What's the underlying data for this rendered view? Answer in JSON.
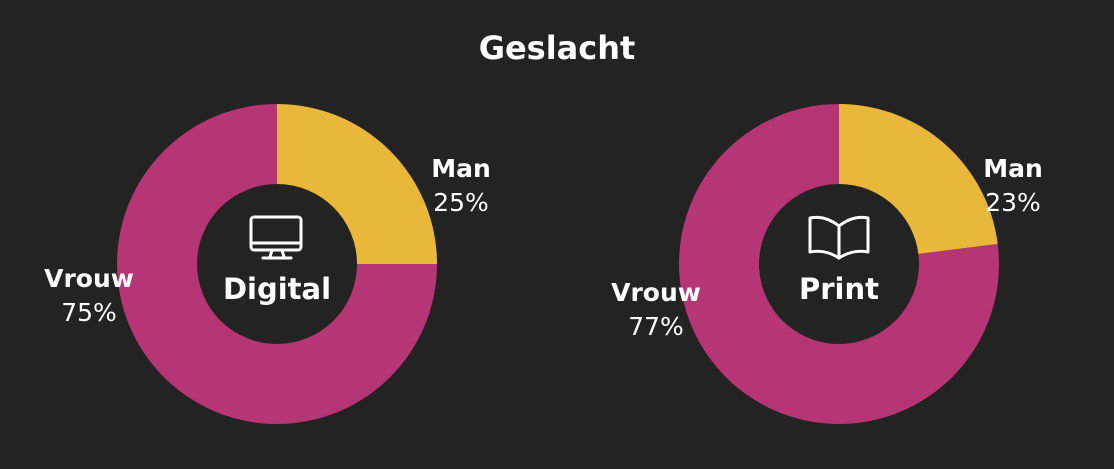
{
  "title": "Geslacht",
  "chart_data": [
    {
      "type": "donut",
      "center_label": "Digital",
      "categories": [
        "Man",
        "Vrouw"
      ],
      "values": [
        25,
        75
      ],
      "value_labels": [
        "25%",
        "75%"
      ],
      "colors": [
        "#e9b73a",
        "#b63575"
      ]
    },
    {
      "type": "donut",
      "center_label": "Print",
      "categories": [
        "Man",
        "Vrouw"
      ],
      "values": [
        23,
        77
      ],
      "value_labels": [
        "23%",
        "77%"
      ],
      "colors": [
        "#e9b73a",
        "#b63575"
      ]
    }
  ]
}
